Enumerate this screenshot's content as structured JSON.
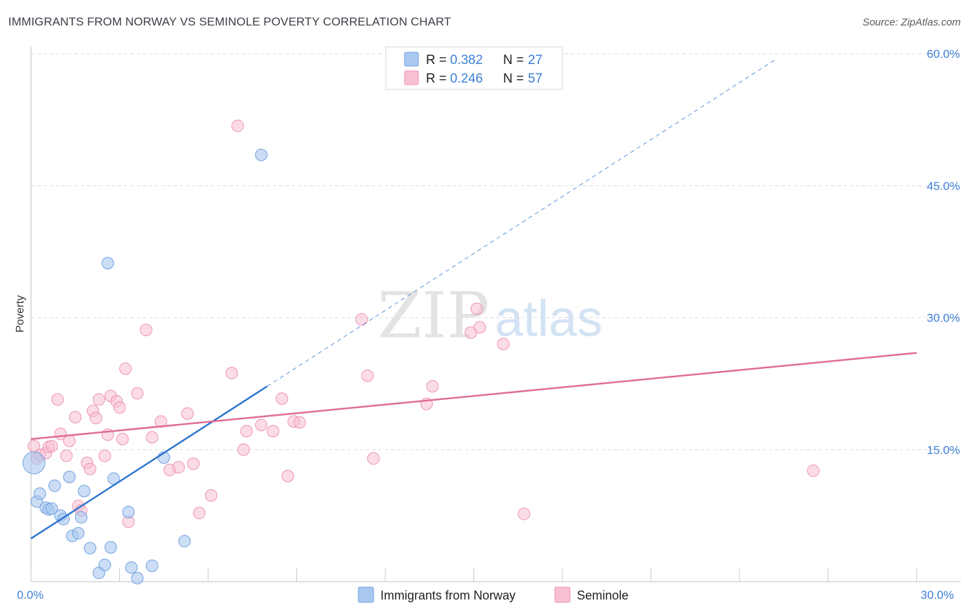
{
  "title": "IMMIGRANTS FROM NORWAY VS SEMINOLE POVERTY CORRELATION CHART",
  "source": "Source: ZipAtlas.com",
  "watermark": {
    "zip": "ZIP",
    "atlas": "atlas"
  },
  "colors": {
    "norway_fill": "#a9c8f0",
    "norway_stroke": "#6f9fe0",
    "norway_line": "#2f74cf",
    "seminole_fill": "#f7c0d2",
    "seminole_stroke": "#ee93b2",
    "seminole_line": "#e06b97",
    "tick_label": "#3d7fd6",
    "grid": "#dcdcdc"
  },
  "legend": {
    "rows": [
      {
        "r_label": "R = ",
        "r_value": "0.382",
        "n_label": "N = ",
        "n_value": "27"
      },
      {
        "r_label": "R = ",
        "r_value": "0.246",
        "n_label": "N = ",
        "n_value": "57"
      }
    ]
  },
  "chart_data": {
    "type": "scatter",
    "title": "IMMIGRANTS FROM NORWAY VS SEMINOLE POVERTY CORRELATION CHART",
    "xlabel": "",
    "ylabel": "Poverty",
    "xlim": [
      0,
      30
    ],
    "ylim": [
      0,
      60
    ],
    "x_tick_labels": [
      "0.0%",
      "30.0%"
    ],
    "y_ticks": [
      15,
      30,
      45,
      60
    ],
    "y_tick_labels": [
      "15.0%",
      "30.0%",
      "45.0%",
      "60.0%"
    ],
    "grid": true,
    "legend_position": "top-center",
    "series": [
      {
        "name": "Immigrants from Norway",
        "R": 0.382,
        "N": 27,
        "trend": {
          "x0": 0,
          "y0": 4.9,
          "x1": 8.0,
          "y1": 22.2,
          "dashed_to_x": 25.2,
          "dashed_to_y": 59.3
        },
        "points": [
          [
            7.8,
            48.5
          ],
          [
            2.6,
            36.2
          ],
          [
            0.1,
            13.5
          ],
          [
            0.2,
            9.1
          ],
          [
            0.3,
            10.0
          ],
          [
            0.5,
            8.4
          ],
          [
            0.6,
            8.2
          ],
          [
            0.7,
            8.3
          ],
          [
            0.8,
            10.9
          ],
          [
            1.0,
            7.5
          ],
          [
            1.1,
            7.1
          ],
          [
            1.3,
            11.9
          ],
          [
            1.4,
            5.2
          ],
          [
            1.6,
            5.5
          ],
          [
            1.7,
            7.3
          ],
          [
            1.8,
            10.3
          ],
          [
            2.0,
            3.8
          ],
          [
            2.3,
            1.0
          ],
          [
            2.5,
            1.9
          ],
          [
            2.7,
            3.9
          ],
          [
            2.8,
            11.7
          ],
          [
            3.3,
            7.9
          ],
          [
            3.4,
            1.6
          ],
          [
            3.6,
            0.4
          ],
          [
            4.1,
            1.8
          ],
          [
            4.5,
            14.1
          ],
          [
            5.2,
            4.6
          ]
        ]
      },
      {
        "name": "Seminole",
        "R": 0.246,
        "N": 57,
        "trend": {
          "x0": 0,
          "y0": 16.2,
          "x1": 30,
          "y1": 26.0
        },
        "points": [
          [
            0.1,
            15.4
          ],
          [
            0.2,
            14.0
          ],
          [
            0.3,
            14.4
          ],
          [
            0.5,
            14.6
          ],
          [
            0.6,
            15.3
          ],
          [
            0.7,
            15.4
          ],
          [
            0.9,
            20.7
          ],
          [
            1.0,
            16.8
          ],
          [
            1.2,
            14.3
          ],
          [
            1.3,
            16.0
          ],
          [
            1.5,
            18.7
          ],
          [
            1.6,
            8.6
          ],
          [
            1.7,
            8.1
          ],
          [
            1.9,
            13.5
          ],
          [
            2.0,
            12.8
          ],
          [
            2.1,
            19.4
          ],
          [
            2.2,
            18.6
          ],
          [
            2.3,
            20.7
          ],
          [
            2.5,
            14.3
          ],
          [
            2.6,
            16.7
          ],
          [
            2.7,
            21.1
          ],
          [
            2.9,
            20.5
          ],
          [
            3.0,
            19.8
          ],
          [
            3.1,
            16.2
          ],
          [
            3.2,
            24.2
          ],
          [
            3.3,
            6.8
          ],
          [
            3.6,
            21.4
          ],
          [
            3.9,
            28.6
          ],
          [
            4.1,
            16.4
          ],
          [
            4.4,
            18.2
          ],
          [
            4.7,
            12.7
          ],
          [
            5.0,
            13.0
          ],
          [
            5.3,
            19.1
          ],
          [
            5.5,
            13.4
          ],
          [
            5.7,
            7.8
          ],
          [
            6.1,
            9.8
          ],
          [
            6.8,
            23.7
          ],
          [
            7.0,
            51.8
          ],
          [
            7.2,
            15.0
          ],
          [
            7.3,
            17.1
          ],
          [
            7.8,
            17.8
          ],
          [
            8.2,
            17.1
          ],
          [
            8.5,
            20.8
          ],
          [
            8.7,
            12.0
          ],
          [
            8.9,
            18.2
          ],
          [
            9.1,
            18.1
          ],
          [
            11.2,
            29.8
          ],
          [
            11.4,
            23.4
          ],
          [
            11.6,
            14.0
          ],
          [
            13.4,
            20.2
          ],
          [
            13.6,
            22.2
          ],
          [
            14.9,
            28.3
          ],
          [
            15.1,
            31.0
          ],
          [
            15.2,
            28.9
          ],
          [
            16.0,
            27.0
          ],
          [
            16.7,
            7.7
          ],
          [
            26.5,
            12.6
          ]
        ]
      }
    ]
  },
  "bottom_legend": [
    {
      "label": "Immigrants from Norway"
    },
    {
      "label": "Seminole"
    }
  ]
}
